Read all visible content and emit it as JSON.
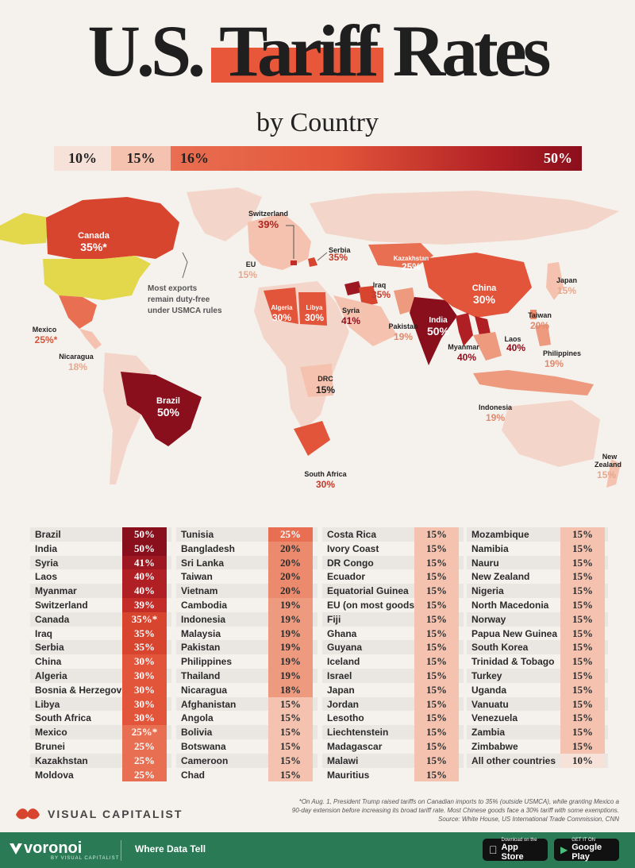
{
  "title": {
    "pre": "U.S.",
    "highlight": "Tariff",
    "post": "Rates"
  },
  "subtitle": "by Country",
  "scale": [
    "10%",
    "15%",
    "16%",
    "50%"
  ],
  "colors": {
    "r10": "#f6e2d8",
    "r15": "#f4c2ae",
    "r19": "#ee9a7f",
    "r20": "#ec8a6e",
    "r25": "#e96f52",
    "r30": "#e2553a",
    "r35": "#d8452f",
    "r39": "#c42c27",
    "r40": "#b01f24",
    "r41": "#9d1820",
    "r50": "#8a0f1c",
    "usa": "#e3d84b",
    "land": "#f3d6c9"
  },
  "map_labels": {
    "switzerland": {
      "name": "Switzerland",
      "value": "39%"
    },
    "canada": {
      "name": "Canada",
      "value": "35%*"
    },
    "serbia": {
      "name": "Serbia",
      "value": "35%"
    },
    "kazakhstan": {
      "name": "Kazakhstan",
      "value": "25%"
    },
    "eu": {
      "name": "EU",
      "value": "15%"
    },
    "usmca_note": [
      "Most exports",
      "remain duty-free",
      "under USMCA rules"
    ],
    "japan": {
      "name": "Japan",
      "value": "15%"
    },
    "china": {
      "name": "China",
      "value": "30%"
    },
    "iraq": {
      "name": "Iraq",
      "value": "35%"
    },
    "algeria": {
      "name": "Algeria",
      "value": "30%"
    },
    "libya": {
      "name": "Libya",
      "value": "30%"
    },
    "syria": {
      "name": "Syria",
      "value": "41%"
    },
    "mexico": {
      "name": "Mexico",
      "value": "25%*"
    },
    "taiwan": {
      "name": "Taiwan",
      "value": "20%"
    },
    "pakistan": {
      "name": "Pakistan",
      "value": "19%"
    },
    "india": {
      "name": "India",
      "value": "50%"
    },
    "laos": {
      "name": "Laos",
      "value": "40%"
    },
    "nicaragua": {
      "name": "Nicaragua",
      "value": "18%"
    },
    "myanmar": {
      "name": "Myanmar",
      "value": "40%"
    },
    "philippines": {
      "name": "Philippines",
      "value": "19%"
    },
    "drc": {
      "name": "DRC",
      "value": "15%"
    },
    "brazil": {
      "name": "Brazil",
      "value": "50%"
    },
    "indonesia": {
      "name": "Indonesia",
      "value": "19%"
    },
    "new_zealand": {
      "name": [
        "New",
        "Zealand"
      ],
      "value": "15%"
    },
    "south_africa": {
      "name": "South Africa",
      "value": "30%"
    }
  },
  "chart_data": {
    "type": "table",
    "title": "U.S. Tariff Rates by Country",
    "columns": [
      [
        [
          "Brazil",
          "50%"
        ],
        [
          "India",
          "50%"
        ],
        [
          "Syria",
          "41%"
        ],
        [
          "Laos",
          "40%"
        ],
        [
          "Myanmar",
          "40%"
        ],
        [
          "Switzerland",
          "39%"
        ],
        [
          "Canada",
          "35%*"
        ],
        [
          "Iraq",
          "35%"
        ],
        [
          "Serbia",
          "35%"
        ],
        [
          "China",
          "30%"
        ],
        [
          "Algeria",
          "30%"
        ],
        [
          "Bosnia & Herzegovina",
          "30%"
        ],
        [
          "Libya",
          "30%"
        ],
        [
          "South Africa",
          "30%"
        ],
        [
          "Mexico",
          "25%*"
        ],
        [
          "Brunei",
          "25%"
        ],
        [
          "Kazakhstan",
          "25%"
        ],
        [
          "Moldova",
          "25%"
        ]
      ],
      [
        [
          "Tunisia",
          "25%"
        ],
        [
          "Bangladesh",
          "20%"
        ],
        [
          "Sri Lanka",
          "20%"
        ],
        [
          "Taiwan",
          "20%"
        ],
        [
          "Vietnam",
          "20%"
        ],
        [
          "Cambodia",
          "19%"
        ],
        [
          "Indonesia",
          "19%"
        ],
        [
          "Malaysia",
          "19%"
        ],
        [
          "Pakistan",
          "19%"
        ],
        [
          "Philippines",
          "19%"
        ],
        [
          "Thailand",
          "19%"
        ],
        [
          "Nicaragua",
          "18%"
        ],
        [
          "Afghanistan",
          "15%"
        ],
        [
          "Angola",
          "15%"
        ],
        [
          "Bolivia",
          "15%"
        ],
        [
          "Botswana",
          "15%"
        ],
        [
          "Cameroon",
          "15%"
        ],
        [
          "Chad",
          "15%"
        ]
      ],
      [
        [
          "Costa Rica",
          "15%"
        ],
        [
          "Ivory Coast",
          "15%"
        ],
        [
          "DR Congo",
          "15%"
        ],
        [
          "Ecuador",
          "15%"
        ],
        [
          "Equatorial Guinea",
          "15%"
        ],
        [
          "EU (on most goods)",
          "15%"
        ],
        [
          "Fiji",
          "15%"
        ],
        [
          "Ghana",
          "15%"
        ],
        [
          "Guyana",
          "15%"
        ],
        [
          "Iceland",
          "15%"
        ],
        [
          "Israel",
          "15%"
        ],
        [
          "Japan",
          "15%"
        ],
        [
          "Jordan",
          "15%"
        ],
        [
          "Lesotho",
          "15%"
        ],
        [
          "Liechtenstein",
          "15%"
        ],
        [
          "Madagascar",
          "15%"
        ],
        [
          "Malawi",
          "15%"
        ],
        [
          "Mauritius",
          "15%"
        ]
      ],
      [
        [
          "Mozambique",
          "15%"
        ],
        [
          "Namibia",
          "15%"
        ],
        [
          "Nauru",
          "15%"
        ],
        [
          "New Zealand",
          "15%"
        ],
        [
          "Nigeria",
          "15%"
        ],
        [
          "North Macedonia",
          "15%"
        ],
        [
          "Norway",
          "15%"
        ],
        [
          "Papua New Guinea",
          "15%"
        ],
        [
          "South Korea",
          "15%"
        ],
        [
          "Trinidad & Tobago",
          "15%"
        ],
        [
          "Turkey",
          "15%"
        ],
        [
          "Uganda",
          "15%"
        ],
        [
          "Vanuatu",
          "15%"
        ],
        [
          "Venezuela",
          "15%"
        ],
        [
          "Zambia",
          "15%"
        ],
        [
          "Zimbabwe",
          "15%"
        ],
        [
          "All other countries",
          "10%"
        ]
      ]
    ]
  },
  "footnote": [
    "*On Aug. 1, President Trump raised tariffs on Canadian imports to 35% (outside USMCA), while granting Mexico a",
    "90-day extension before increasing its broad tariff rate. Most Chinese goods face a 30% tariff with some exemptions.",
    "Source: White House, US International Trade Commission, CNN"
  ],
  "vc_logo": "VISUAL CAPITALIST",
  "footer": {
    "brand": "voronoi",
    "by": "BY VISUAL CAPITALIST",
    "tagline": "Where Data Tell",
    "app_store": {
      "small": "Download on the",
      "big": "App Store"
    },
    "google_play": {
      "small": "GET IT ON",
      "big": "Google Play"
    }
  }
}
